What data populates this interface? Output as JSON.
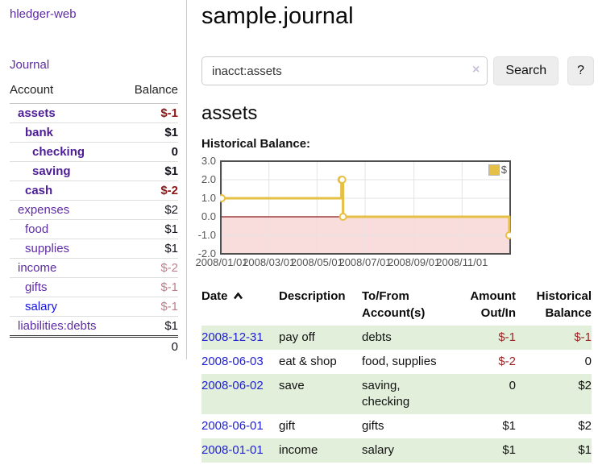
{
  "app": {
    "title": "hledger-web"
  },
  "sidebar": {
    "journal_link": "Journal",
    "headers": {
      "account": "Account",
      "balance": "Balance"
    },
    "accounts": [
      {
        "name": "assets",
        "balance": "$-1"
      },
      {
        "name": "bank",
        "balance": "$1"
      },
      {
        "name": "checking",
        "balance": "0"
      },
      {
        "name": "saving",
        "balance": "$1"
      },
      {
        "name": "cash",
        "balance": "$-2"
      },
      {
        "name": "expenses",
        "balance": "$2"
      },
      {
        "name": "food",
        "balance": "$1"
      },
      {
        "name": "supplies",
        "balance": "$1"
      },
      {
        "name": "income",
        "balance": "$-2"
      },
      {
        "name": "gifts",
        "balance": "$-1"
      },
      {
        "name": "salary",
        "balance": "$-1"
      },
      {
        "name": "liabilities:debts",
        "balance": "$1"
      }
    ],
    "total": "0"
  },
  "main": {
    "title": "sample.journal",
    "search": {
      "value": "inacct:assets",
      "clear_icon": "×",
      "button_label": "Search",
      "help_label": "?"
    },
    "account_heading": "assets",
    "register": {
      "headers": {
        "date": "Date",
        "description": "Description",
        "account_line1": "To/From",
        "account_line2": "Account(s)",
        "amount_line1": "Amount",
        "amount_line2": "Out/In",
        "balance_line1": "Historical",
        "balance_line2": "Balance"
      },
      "rows": [
        {
          "date": "2008-12-31",
          "description": "pay off",
          "accounts": "debts",
          "amount": "$-1",
          "balance": "$-1"
        },
        {
          "date": "2008-06-03",
          "description": "eat & shop",
          "accounts": "food, supplies",
          "amount": "$-2",
          "balance": "0"
        },
        {
          "date": "2008-06-02",
          "description": "save",
          "accounts": "saving, checking",
          "amount": "0",
          "balance": "$2"
        },
        {
          "date": "2008-06-01",
          "description": "gift",
          "accounts": "gifts",
          "amount": "$1",
          "balance": "$2"
        },
        {
          "date": "2008-01-01",
          "description": "income",
          "accounts": "salary",
          "amount": "$1",
          "balance": "$1"
        }
      ]
    }
  },
  "chart_data": {
    "type": "line",
    "title": "Historical Balance:",
    "step": true,
    "xlim": [
      "2008-01-01",
      "2008-12-31"
    ],
    "ylim": [
      -2,
      3
    ],
    "x_ticks": [
      "2008/01/01",
      "2008/03/01",
      "2008/05/01",
      "2008/07/01",
      "2008/09/01",
      "2008/11/01"
    ],
    "y_ticks": [
      3,
      2,
      1,
      0,
      -1,
      -2
    ],
    "series": [
      {
        "name": "$",
        "color": "#e6bf45",
        "points": [
          [
            "2008-01-01",
            1
          ],
          [
            "2008-06-01",
            2
          ],
          [
            "2008-06-02",
            2
          ],
          [
            "2008-06-03",
            0
          ],
          [
            "2008-12-31",
            -1
          ]
        ]
      }
    ],
    "negative_region_color": "#f9dcdc",
    "zero_line_color": "#8c1717",
    "grid_color": "#e3e3e3",
    "border_color": "#4f4f4f",
    "legend_position": "top-right"
  }
}
